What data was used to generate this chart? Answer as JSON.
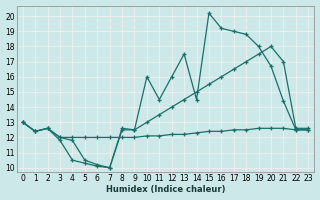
{
  "xlabel": "Humidex (Indice chaleur)",
  "background_color": "#cce8e8",
  "grid_color": "#f0f0f0",
  "line_color": "#1a7068",
  "x_ticks": [
    0,
    1,
    2,
    3,
    4,
    5,
    6,
    7,
    8,
    9,
    10,
    11,
    12,
    13,
    14,
    15,
    16,
    17,
    18,
    19,
    20,
    21,
    22,
    23
  ],
  "y_ticks": [
    10,
    11,
    12,
    13,
    14,
    15,
    16,
    17,
    18,
    19,
    20
  ],
  "ylim": [
    9.7,
    20.7
  ],
  "xlim": [
    -0.5,
    23.5
  ],
  "line1_x": [
    0,
    1,
    2,
    3,
    4,
    5,
    6,
    7,
    8,
    9,
    10,
    11,
    12,
    13,
    14,
    15,
    16,
    17,
    18,
    19,
    20,
    21,
    22,
    23
  ],
  "line1_y": [
    13.0,
    12.4,
    12.6,
    11.8,
    10.5,
    10.3,
    10.1,
    10.0,
    12.6,
    12.5,
    13.0,
    13.5,
    14.0,
    14.5,
    15.0,
    15.5,
    16.0,
    16.5,
    17.0,
    17.5,
    18.0,
    17.0,
    12.6,
    12.6
  ],
  "line2_x": [
    0,
    1,
    2,
    3,
    4,
    5,
    6,
    7,
    8,
    9,
    10,
    11,
    12,
    13,
    14,
    15,
    16,
    17,
    18,
    19,
    20,
    21,
    22,
    23
  ],
  "line2_y": [
    13.0,
    12.4,
    12.6,
    12.0,
    11.8,
    10.5,
    10.2,
    10.0,
    12.5,
    12.5,
    16.0,
    14.5,
    16.0,
    17.5,
    14.5,
    20.2,
    19.2,
    19.0,
    18.8,
    18.0,
    16.7,
    14.4,
    12.5,
    12.5
  ],
  "line3_x": [
    0,
    1,
    2,
    3,
    4,
    5,
    6,
    7,
    8,
    9,
    10,
    11,
    12,
    13,
    14,
    15,
    16,
    17,
    18,
    19,
    20,
    21,
    22,
    23
  ],
  "line3_y": [
    13.0,
    12.4,
    12.6,
    12.0,
    12.0,
    12.0,
    12.0,
    12.0,
    12.0,
    12.0,
    12.1,
    12.1,
    12.2,
    12.2,
    12.3,
    12.4,
    12.4,
    12.5,
    12.5,
    12.6,
    12.6,
    12.6,
    12.5,
    12.5
  ]
}
